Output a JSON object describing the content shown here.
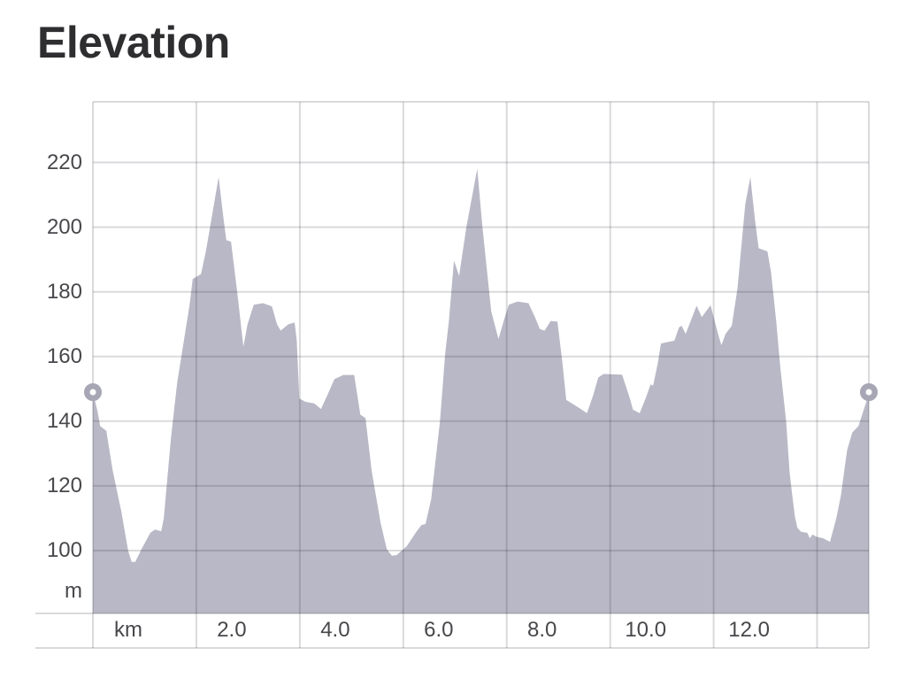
{
  "header": {
    "title": "Elevation"
  },
  "axes": {
    "y_unit_label": "m",
    "x_unit_label": "km"
  },
  "colors": {
    "background": "#ffffff",
    "title_text": "#2e2e31",
    "axis_text": "#48484c",
    "area_fill": "#b9b8c6",
    "gridline": "rgba(33,33,46,0.17)",
    "marker_ring": "#a7a6b4",
    "marker_hole": "#ffffff"
  },
  "chart_data": {
    "type": "area",
    "title": "Elevation",
    "xlabel": "km",
    "ylabel": "m",
    "grid": true,
    "legend": "none",
    "xlim_km": [
      0,
      15
    ],
    "ylim_m": [
      81,
      239
    ],
    "y_ticks_m": [
      220,
      200,
      180,
      160,
      140,
      120,
      100
    ],
    "x_gridlines_km": [
      0,
      2,
      4,
      6,
      8,
      10,
      12,
      14
    ],
    "x_tick_labels": [
      "km",
      "2.0",
      "4.0",
      "6.0",
      "8.0",
      "10.0",
      "12.0"
    ],
    "start_point": {
      "km": 0,
      "elevation_m": 149
    },
    "end_point": {
      "km": 15.0,
      "elevation_m": 149
    },
    "series": [
      {
        "name": "elevation-profile",
        "points_km_m": [
          [
            0,
            149
          ],
          [
            0.09,
            143
          ],
          [
            0.14,
            138.5
          ],
          [
            0.26,
            137
          ],
          [
            0.38,
            125
          ],
          [
            0.55,
            112
          ],
          [
            0.68,
            100
          ],
          [
            0.75,
            96.5
          ],
          [
            0.82,
            96.5
          ],
          [
            0.94,
            100.5
          ],
          [
            1.11,
            105.5
          ],
          [
            1.2,
            106.5
          ],
          [
            1.32,
            106
          ],
          [
            1.37,
            110
          ],
          [
            1.51,
            135
          ],
          [
            1.63,
            152
          ],
          [
            1.76,
            165
          ],
          [
            1.87,
            176
          ],
          [
            1.93,
            184
          ],
          [
            2.09,
            185.5
          ],
          [
            2.19,
            193
          ],
          [
            2.43,
            215.5
          ],
          [
            2.53,
            202
          ],
          [
            2.58,
            196
          ],
          [
            2.67,
            195.5
          ],
          [
            2.79,
            180
          ],
          [
            2.91,
            163
          ],
          [
            2.99,
            170
          ],
          [
            3.11,
            176
          ],
          [
            3.29,
            176.5
          ],
          [
            3.46,
            175.5
          ],
          [
            3.56,
            170
          ],
          [
            3.63,
            168
          ],
          [
            3.78,
            170
          ],
          [
            3.9,
            170.5
          ],
          [
            3.94,
            165
          ],
          [
            3.99,
            147
          ],
          [
            4.11,
            146
          ],
          [
            4.28,
            145.5
          ],
          [
            4.41,
            143.8
          ],
          [
            4.53,
            148
          ],
          [
            4.67,
            153
          ],
          [
            4.84,
            154.3
          ],
          [
            5.05,
            154.3
          ],
          [
            5.17,
            142
          ],
          [
            5.27,
            141
          ],
          [
            5.39,
            124.6
          ],
          [
            5.56,
            108.7
          ],
          [
            5.68,
            100.5
          ],
          [
            5.78,
            98.4
          ],
          [
            5.87,
            98.6
          ],
          [
            6.07,
            101.4
          ],
          [
            6.24,
            105.5
          ],
          [
            6.35,
            107.9
          ],
          [
            6.43,
            108.2
          ],
          [
            6.54,
            116
          ],
          [
            6.62,
            127.2
          ],
          [
            6.71,
            140
          ],
          [
            6.81,
            161
          ],
          [
            6.88,
            170.8
          ],
          [
            6.93,
            180.3
          ],
          [
            6.98,
            189.7
          ],
          [
            7.08,
            184.9
          ],
          [
            7.22,
            200
          ],
          [
            7.43,
            218
          ],
          [
            7.53,
            200
          ],
          [
            7.7,
            174
          ],
          [
            7.84,
            165.4
          ],
          [
            7.96,
            172
          ],
          [
            8.04,
            176
          ],
          [
            8.21,
            177
          ],
          [
            8.42,
            176.5
          ],
          [
            8.55,
            172
          ],
          [
            8.64,
            168.5
          ],
          [
            8.73,
            168
          ],
          [
            8.85,
            171
          ],
          [
            8.98,
            170.8
          ],
          [
            9.07,
            159
          ],
          [
            9.15,
            146.6
          ],
          [
            9.27,
            145.4
          ],
          [
            9.41,
            144
          ],
          [
            9.55,
            142.5
          ],
          [
            9.67,
            148
          ],
          [
            9.77,
            153.5
          ],
          [
            9.87,
            154.6
          ],
          [
            10.23,
            154.4
          ],
          [
            10.32,
            150
          ],
          [
            10.39,
            146.5
          ],
          [
            10.44,
            143.6
          ],
          [
            10.57,
            142.5
          ],
          [
            10.69,
            147.3
          ],
          [
            10.78,
            151.4
          ],
          [
            10.83,
            151
          ],
          [
            10.92,
            158
          ],
          [
            10.98,
            164
          ],
          [
            11.12,
            164.5
          ],
          [
            11.24,
            164.9
          ],
          [
            11.33,
            169
          ],
          [
            11.38,
            169.5
          ],
          [
            11.46,
            167
          ],
          [
            11.67,
            175.7
          ],
          [
            11.77,
            172.2
          ],
          [
            11.94,
            175.9
          ],
          [
            12.03,
            170.3
          ],
          [
            12.1,
            166.2
          ],
          [
            12.15,
            163.5
          ],
          [
            12.23,
            167
          ],
          [
            12.35,
            169.5
          ],
          [
            12.46,
            181
          ],
          [
            12.61,
            207
          ],
          [
            12.71,
            215.5
          ],
          [
            12.8,
            202
          ],
          [
            12.87,
            193.5
          ],
          [
            13.04,
            192.5
          ],
          [
            13.11,
            186
          ],
          [
            13.21,
            171
          ],
          [
            13.29,
            156.5
          ],
          [
            13.4,
            140
          ],
          [
            13.47,
            124
          ],
          [
            13.52,
            117
          ],
          [
            13.57,
            110.5
          ],
          [
            13.62,
            107
          ],
          [
            13.69,
            105.8
          ],
          [
            13.81,
            105.5
          ],
          [
            13.86,
            103.8
          ],
          [
            13.91,
            105
          ],
          [
            13.98,
            104.3
          ],
          [
            14.12,
            103.8
          ],
          [
            14.25,
            102.7
          ],
          [
            14.37,
            110
          ],
          [
            14.46,
            117
          ],
          [
            14.58,
            131
          ],
          [
            14.68,
            136.5
          ],
          [
            14.8,
            138.5
          ],
          [
            14.89,
            143
          ],
          [
            14.95,
            146
          ],
          [
            15.0,
            149
          ]
        ]
      }
    ]
  }
}
